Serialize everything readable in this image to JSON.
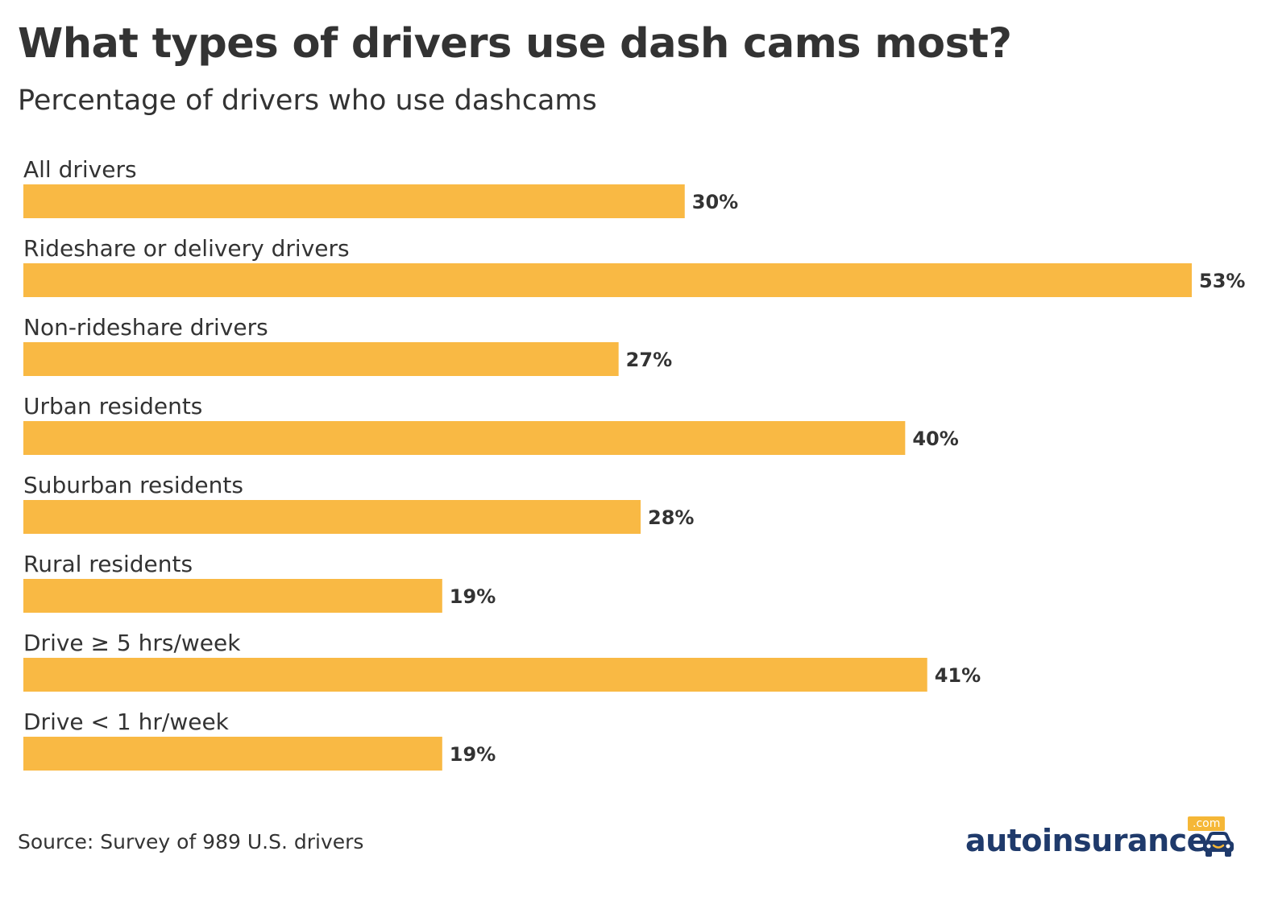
{
  "chart_data": {
    "type": "bar",
    "orientation": "horizontal",
    "title": "What types of drivers use dash cams most?",
    "subtitle": "Percentage of drivers who use dashcams",
    "categories": [
      "All drivers",
      "Rideshare or delivery drivers",
      "Non-rideshare drivers",
      "Urban residents",
      "Suburban residents",
      "Rural residents",
      "Drive ≥ 5 hrs/week",
      "Drive < 1 hr/week"
    ],
    "values": [
      30,
      53,
      27,
      40,
      28,
      19,
      41,
      19
    ],
    "value_labels": [
      "30%",
      "53%",
      "27%",
      "40%",
      "28%",
      "19%",
      "41%",
      "19%"
    ],
    "unit": "%",
    "xlim": [
      0,
      53
    ],
    "grid": false,
    "legend": "none",
    "bar_color": "#f9b944"
  },
  "footer": {
    "source": "Source: Survey of 989 U.S. drivers"
  },
  "logo": {
    "text": "autoinsurance",
    "suffix": ".com",
    "icon": "car-icon",
    "color": "#1f3a6b",
    "accent": "#f5b737"
  }
}
